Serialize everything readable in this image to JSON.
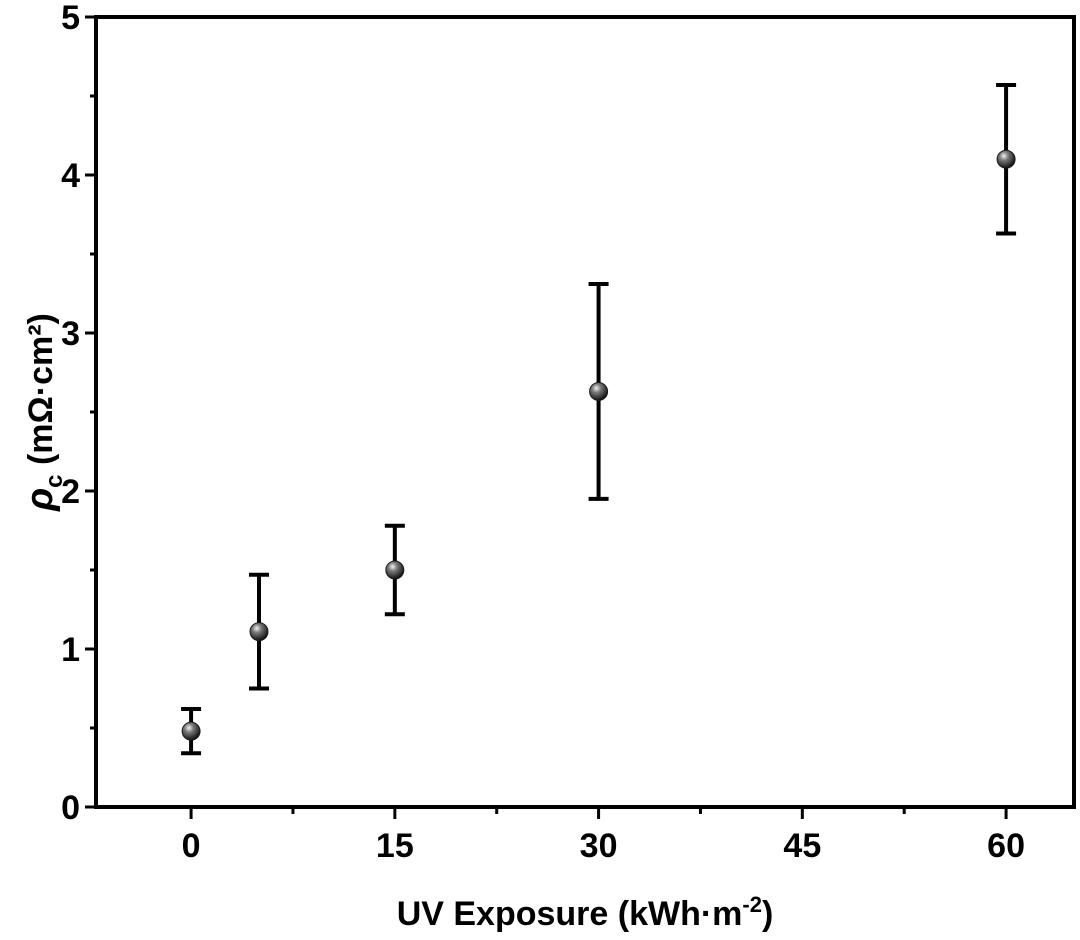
{
  "chart_data": {
    "type": "scatter",
    "title": "",
    "xlabel": {
      "main": "UV Exposure (kWh·m",
      "sup": "-2",
      "close": ")"
    },
    "ylabel": {
      "symbol": "ρ",
      "sub": "c",
      "rest": " (mΩ·cm²)"
    },
    "xlim": [
      -7,
      65
    ],
    "ylim": [
      0,
      5
    ],
    "x_ticks": [
      0,
      15,
      30,
      45,
      60
    ],
    "x_minor_ticks": [
      7.5,
      22.5,
      37.5,
      52.5
    ],
    "y_ticks": [
      0,
      1,
      2,
      3,
      4,
      5
    ],
    "y_minor_ticks": [
      0.5,
      1.5,
      2.5,
      3.5,
      4.5
    ],
    "grid": false,
    "legend": "none",
    "colors": {
      "marker": "#1a1a1a",
      "error_bar": "#000000",
      "axis": "#000000"
    },
    "points": [
      {
        "x": 0,
        "y": 0.48,
        "y_low": 0.34,
        "y_high": 0.62
      },
      {
        "x": 5,
        "y": 1.11,
        "y_low": 0.75,
        "y_high": 1.47
      },
      {
        "x": 15,
        "y": 1.5,
        "y_low": 1.22,
        "y_high": 1.78
      },
      {
        "x": 30,
        "y": 2.63,
        "y_low": 1.95,
        "y_high": 3.31
      },
      {
        "x": 60,
        "y": 4.1,
        "y_low": 3.63,
        "y_high": 4.57
      }
    ]
  }
}
